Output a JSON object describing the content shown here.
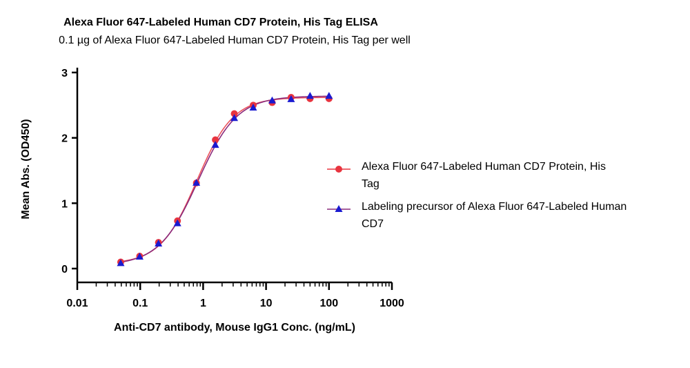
{
  "chart_data": {
    "type": "line",
    "title": "Alexa Fluor 647-Labeled Human CD7 Protein, His Tag ELISA",
    "subtitle": "0.1 µg of Alexa Fluor 647-Labeled Human CD7 Protein, His Tag per well",
    "xlabel": "Anti-CD7 antibody, Mouse IgG1 Conc. (ng/mL)",
    "ylabel": "Mean Abs. (OD450)",
    "xscale": "log",
    "xlim": [
      0.01,
      1000
    ],
    "ylim": [
      0,
      3
    ],
    "xticks": [
      "0.01",
      "0.1",
      "1",
      "10",
      "100",
      "1000"
    ],
    "yticks": [
      "0",
      "1",
      "2",
      "3"
    ],
    "x": [
      0.049,
      0.098,
      0.195,
      0.391,
      0.781,
      1.563,
      3.125,
      6.25,
      12.5,
      25,
      50,
      100
    ],
    "series": [
      {
        "name": "Alexa Fluor 647-Labeled Human CD7 Protein, His Tag",
        "legend_lines": [
          "Alexa Fluor 647-Labeled Human CD7 Protein, His",
          "Tag"
        ],
        "marker": "circle",
        "color": "#e8343f",
        "values": [
          0.1,
          0.19,
          0.4,
          0.73,
          1.31,
          1.97,
          2.37,
          2.5,
          2.54,
          2.62,
          2.6,
          2.6
        ]
      },
      {
        "name": "Labeling precursor of Alexa Fluor 647-Labeled Human CD7",
        "legend_lines": [
          "Labeling precursor of Alexa Fluor 647-Labeled Human",
          "CD7"
        ],
        "marker": "triangle",
        "color": "#1a1ad0",
        "values": [
          0.08,
          0.18,
          0.38,
          0.69,
          1.31,
          1.89,
          2.3,
          2.46,
          2.57,
          2.59,
          2.64,
          2.64
        ]
      }
    ],
    "curve_color": "#8a2a7c",
    "legend_position": "right"
  }
}
